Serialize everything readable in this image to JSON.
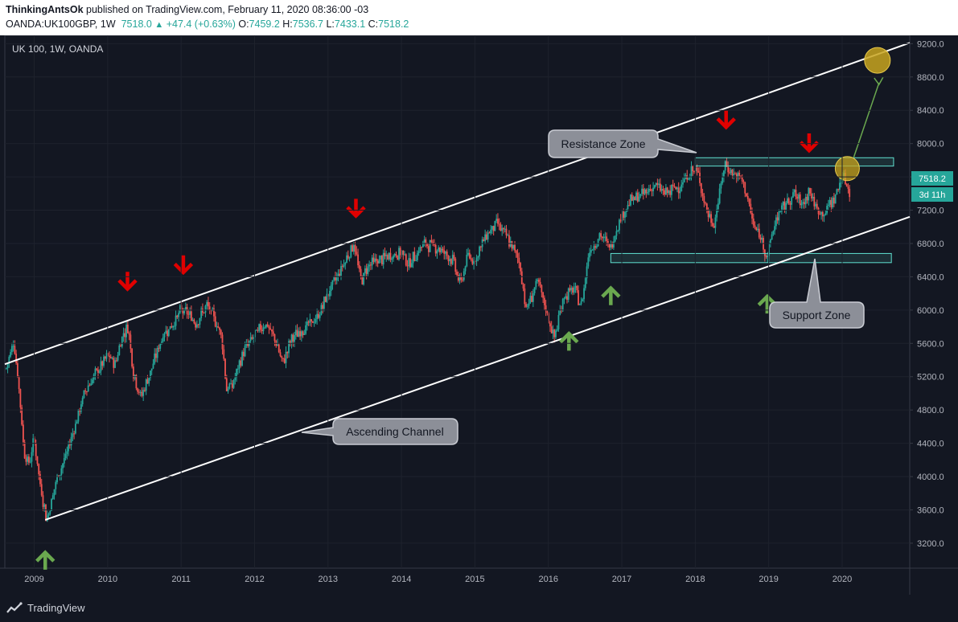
{
  "header": {
    "author": "ThinkingAntsOk",
    "published": " published on TradingView.com, February 11, 2020 08:36:00 -03",
    "symbol": "OANDA:UK100GBP, 1W",
    "last": "7518.0",
    "change": "+47.4 (+0.63%)",
    "o_label": "O:",
    "o": "7459.2",
    "h_label": "H:",
    "h": "7536.7",
    "l_label": "L:",
    "l": "7433.1",
    "c_label": "C:",
    "c": "7518.2"
  },
  "chart_title": "UK 100, 1W, OANDA",
  "price_badge": "7518.2",
  "countdown_badge": "3d 11h",
  "footer": {
    "brand": "TradingView"
  },
  "annotations": {
    "resistance": "Resistance Zone",
    "support": "Support Zone",
    "channel": "Ascending Channel"
  },
  "colors": {
    "background": "#131722",
    "up": "#26a69a",
    "down": "#ef5350",
    "sell_arrow": "#e00000",
    "buy_arrow": "#6aa84f",
    "zone": "#5fe0d0",
    "target": "#c8a51e"
  },
  "chart_data": {
    "type": "candlestick",
    "x_ticks": [
      "2009",
      "2010",
      "2011",
      "2012",
      "2013",
      "2014",
      "2015",
      "2016",
      "2017",
      "2018",
      "2019",
      "2020"
    ],
    "y_ticks": [
      "9200.0",
      "8800.0",
      "8400.0",
      "8000.0",
      "7600.0",
      "7200.0",
      "6800.0",
      "6400.0",
      "6000.0",
      "5600.0",
      "5200.0",
      "4800.0",
      "4400.0",
      "4000.0",
      "3600.0",
      "3200.0"
    ],
    "ylim": [
      2900,
      9300
    ],
    "xlim": [
      2008.6,
      2020.92
    ],
    "price_path": [
      [
        2008.62,
        5300
      ],
      [
        2008.72,
        5650
      ],
      [
        2008.8,
        5000
      ],
      [
        2008.86,
        4300
      ],
      [
        2008.93,
        4150
      ],
      [
        2009.0,
        4450
      ],
      [
        2009.08,
        3900
      ],
      [
        2009.17,
        3480
      ],
      [
        2009.3,
        3950
      ],
      [
        2009.45,
        4300
      ],
      [
        2009.55,
        4600
      ],
      [
        2009.7,
        5050
      ],
      [
        2009.85,
        5250
      ],
      [
        2010.0,
        5450
      ],
      [
        2010.1,
        5350
      ],
      [
        2010.2,
        5700
      ],
      [
        2010.28,
        5800
      ],
      [
        2010.35,
        5250
      ],
      [
        2010.45,
        4950
      ],
      [
        2010.6,
        5300
      ],
      [
        2010.75,
        5700
      ],
      [
        2010.9,
        5850
      ],
      [
        2011.0,
        6000
      ],
      [
        2011.1,
        5950
      ],
      [
        2011.2,
        5850
      ],
      [
        2011.35,
        6050
      ],
      [
        2011.45,
        5900
      ],
      [
        2011.55,
        5700
      ],
      [
        2011.62,
        5050
      ],
      [
        2011.7,
        5100
      ],
      [
        2011.85,
        5500
      ],
      [
        2012.0,
        5700
      ],
      [
        2012.15,
        5850
      ],
      [
        2012.3,
        5600
      ],
      [
        2012.38,
        5350
      ],
      [
        2012.5,
        5650
      ],
      [
        2012.7,
        5800
      ],
      [
        2012.85,
        5900
      ],
      [
        2013.0,
        6200
      ],
      [
        2013.15,
        6450
      ],
      [
        2013.35,
        6800
      ],
      [
        2013.45,
        6350
      ],
      [
        2013.55,
        6550
      ],
      [
        2013.7,
        6600
      ],
      [
        2013.85,
        6650
      ],
      [
        2014.0,
        6700
      ],
      [
        2014.1,
        6550
      ],
      [
        2014.3,
        6800
      ],
      [
        2014.5,
        6750
      ],
      [
        2014.7,
        6600
      ],
      [
        2014.8,
        6300
      ],
      [
        2014.9,
        6650
      ],
      [
        2015.0,
        6600
      ],
      [
        2015.15,
        6900
      ],
      [
        2015.3,
        7050
      ],
      [
        2015.45,
        6850
      ],
      [
        2015.6,
        6600
      ],
      [
        2015.7,
        6000
      ],
      [
        2015.85,
        6350
      ],
      [
        2016.0,
        5900
      ],
      [
        2016.08,
        5650
      ],
      [
        2016.2,
        6150
      ],
      [
        2016.35,
        6250
      ],
      [
        2016.45,
        6050
      ],
      [
        2016.55,
        6700
      ],
      [
        2016.7,
        6900
      ],
      [
        2016.85,
        6750
      ],
      [
        2016.95,
        7050
      ],
      [
        2017.1,
        7300
      ],
      [
        2017.3,
        7400
      ],
      [
        2017.45,
        7500
      ],
      [
        2017.6,
        7400
      ],
      [
        2017.8,
        7500
      ],
      [
        2017.98,
        7700
      ],
      [
        2018.05,
        7600
      ],
      [
        2018.15,
        7200
      ],
      [
        2018.25,
        7000
      ],
      [
        2018.4,
        7750
      ],
      [
        2018.5,
        7650
      ],
      [
        2018.65,
        7550
      ],
      [
        2018.8,
        7000
      ],
      [
        2018.9,
        6850
      ],
      [
        2018.98,
        6650
      ],
      [
        2019.1,
        7100
      ],
      [
        2019.25,
        7300
      ],
      [
        2019.35,
        7400
      ],
      [
        2019.45,
        7250
      ],
      [
        2019.55,
        7450
      ],
      [
        2019.65,
        7200
      ],
      [
        2019.75,
        7150
      ],
      [
        2019.85,
        7300
      ],
      [
        2019.93,
        7400
      ],
      [
        2019.98,
        7600
      ],
      [
        2020.05,
        7550
      ],
      [
        2020.1,
        7400
      ],
      [
        2020.11,
        7518
      ]
    ],
    "channel_upper": [
      [
        2008.6,
        5350
      ],
      [
        2020.92,
        9210
      ]
    ],
    "channel_lower": [
      [
        2009.15,
        3480
      ],
      [
        2020.92,
        7120
      ]
    ],
    "resistance_zone": [
      7730,
      7830
    ],
    "support_zone": [
      6570,
      6680
    ],
    "sell_signals": [
      2010.27,
      2011.03,
      2013.38,
      2018.42,
      2019.55
    ],
    "buy_signals": [
      2009.15,
      2016.28,
      2016.85,
      2018.98
    ],
    "target": {
      "x": 2020.48,
      "y": 9000
    },
    "retest": {
      "x": 2020.07,
      "y": 7700
    }
  }
}
